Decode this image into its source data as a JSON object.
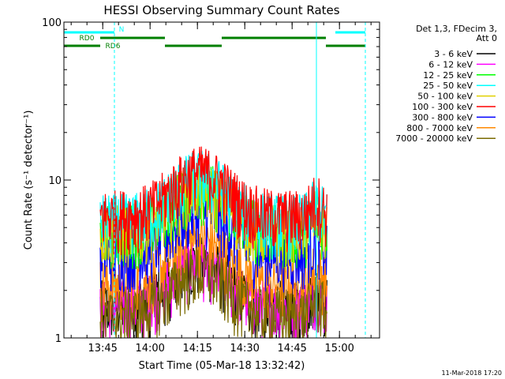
{
  "chart_data": {
    "type": "line",
    "title": "HESSI Observing Summary Count Rates",
    "xlabel": "Start Time (05-Mar-18 13:32:42)",
    "ylabel": "Count Rate (s⁻¹ detector⁻¹)",
    "yscale": "log",
    "ylim": [
      1,
      100
    ],
    "y_ticks": [
      {
        "value": 1,
        "label": "1"
      },
      {
        "value": 10,
        "label": "10"
      },
      {
        "value": 100,
        "label": "100"
      }
    ],
    "xlim_minutes": [
      0,
      100
    ],
    "x_ticks": [
      {
        "minute": 12.3,
        "label": "13:45"
      },
      {
        "minute": 27.3,
        "label": "14:00"
      },
      {
        "minute": 42.3,
        "label": "14:15"
      },
      {
        "minute": 57.3,
        "label": "14:30"
      },
      {
        "minute": 72.3,
        "label": "14:45"
      },
      {
        "minute": 87.3,
        "label": "15:00"
      }
    ],
    "legend": {
      "placement": "right",
      "header": [
        "Det 1,3, FDecim 3,",
        "Att 0"
      ]
    },
    "series": [
      {
        "name": "3 - 6 keV",
        "color": "#000000",
        "level": 1.6
      },
      {
        "name": "6 - 12 keV",
        "color": "#ff00ff",
        "level": 1.6
      },
      {
        "name": "12 - 25 keV",
        "color": "#00ff00",
        "level": 4.8
      },
      {
        "name": "25 - 50 keV",
        "color": "#00ffff",
        "level": 5.6
      },
      {
        "name": "50 - 100 keV",
        "color": "#e0d000",
        "level": 4.8
      },
      {
        "name": "100 - 300 keV",
        "color": "#ff0000",
        "level": 6.0
      },
      {
        "name": "300 - 800 keV",
        "color": "#0000ff",
        "level": 3.4
      },
      {
        "name": "800 - 7000 keV",
        "color": "#ff8800",
        "level": 2.2
      },
      {
        "name": "7000 - 20000 keV",
        "color": "#7a6a00",
        "level": 1.4
      }
    ],
    "data_interval_minutes": [
      11.5,
      83.5
    ],
    "flare_peak_minute": 43,
    "annotations": [
      {
        "label": "N",
        "color": "#00ffff",
        "segments": [
          [
            0,
            16
          ],
          [
            86,
            95.5
          ]
        ]
      },
      {
        "label": "RD0",
        "color": "#007f00",
        "segments": [
          [
            11.5,
            32
          ],
          [
            50,
            83
          ]
        ]
      },
      {
        "label": "RD6",
        "color": "#007f00",
        "segments": [
          [
            0,
            11.5
          ],
          [
            32,
            50
          ],
          [
            83,
            95.5
          ]
        ]
      }
    ],
    "night_markers_minutes": [
      {
        "minute": 16,
        "style": "dashed"
      },
      {
        "minute": 80,
        "style": "solid"
      },
      {
        "minute": 95.5,
        "style": "dashed"
      }
    ],
    "footer_timestamp": "11-Mar-2018 17:20"
  }
}
